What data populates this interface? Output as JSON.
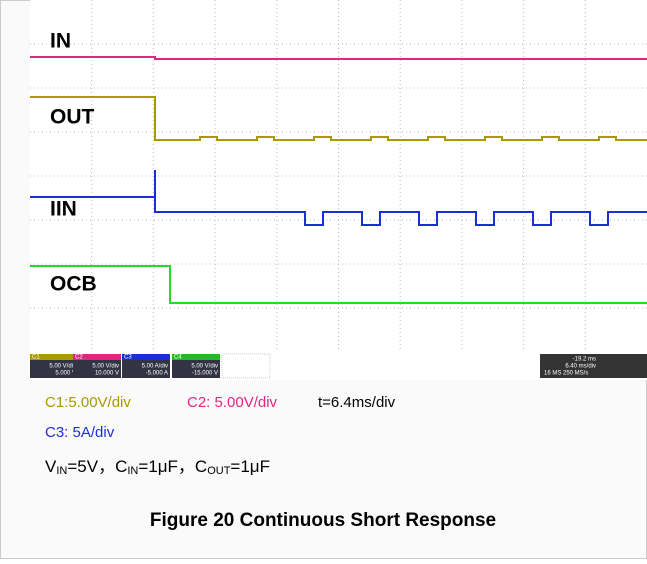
{
  "scope": {
    "channels": [
      "IN",
      "OUT",
      "IIN",
      "OCB"
    ],
    "info": [
      [
        "C1",
        "5.00 V/div",
        "5.000 V"
      ],
      [
        "C2",
        "5.00 V/div",
        "10.000 V"
      ],
      [
        "C3",
        "5.00 A/div",
        "-5.000 A"
      ],
      [
        "C4",
        "5.00 V/div",
        "-15.000 V"
      ]
    ],
    "timebase": [
      "-19.2 ms",
      "6.40 ms/div",
      "16 MS  250 MS/s"
    ]
  },
  "captions": {
    "c1": "C1:5.00V/div",
    "c2": "C2: 5.00V/div",
    "t": "t=6.4ms/div",
    "c3": "C3: 5A/div",
    "conditions": [
      "V",
      "IN",
      "=5V，C",
      "IN",
      "=1μF，C",
      "OUT",
      "=1μF"
    ]
  },
  "figure": "Figure 20 Continuous Short Response"
}
